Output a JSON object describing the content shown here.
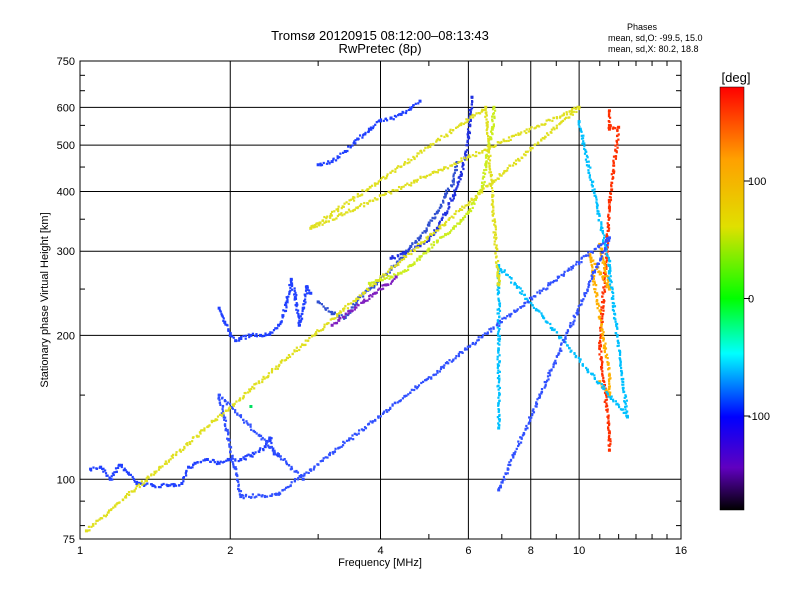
{
  "chart_data": {
    "type": "scatter",
    "title": "Tromsø 20120915 08:12:00–08:13:43",
    "subtitle": "RwPretec (8p)",
    "xlabel": "Frequency [MHz]",
    "ylabel": "Stationary phase Virtual Height [km]",
    "x_scale": "log",
    "y_scale": "log",
    "xlim": [
      1,
      16
    ],
    "ylim": [
      75,
      750
    ],
    "x_ticks": [
      1,
      2,
      4,
      6,
      8,
      10,
      16
    ],
    "y_ticks": [
      75,
      100,
      200,
      300,
      400,
      500,
      600,
      750
    ],
    "grid": true,
    "stats": {
      "heading": "Phases",
      "line_o": "mean, sd,O: -99.5, 15.0",
      "line_x": "mean, sd,X:  80.2, 18.8"
    },
    "colorbar": {
      "label": "[deg]",
      "range": [
        -180,
        180
      ],
      "ticks": [
        100,
        0,
        -100
      ],
      "colors": [
        "#ff0000",
        "#ffa000",
        "#e0e000",
        "#00ff00",
        "#00ffff",
        "#0000ff",
        "#6000c0",
        "#000000"
      ]
    },
    "series": [
      {
        "color": "#2040ff",
        "points": [
          [
            1.05,
            105
          ],
          [
            1.1,
            106
          ],
          [
            1.15,
            100
          ],
          [
            1.2,
            107
          ],
          [
            1.25,
            103
          ],
          [
            1.3,
            98
          ],
          [
            1.4,
            97
          ],
          [
            1.5,
            97
          ],
          [
            1.6,
            98
          ],
          [
            1.65,
            106
          ],
          [
            1.7,
            108
          ],
          [
            1.8,
            110
          ],
          [
            1.9,
            108
          ],
          [
            2.0,
            110
          ],
          [
            2.1,
            110
          ],
          [
            2.2,
            112
          ],
          [
            2.35,
            117
          ],
          [
            2.4,
            122
          ],
          [
            2.45,
            113
          ],
          [
            2.5,
            112
          ]
        ]
      },
      {
        "color": "#2040ff",
        "points": [
          [
            1.9,
            228
          ],
          [
            1.95,
            213
          ],
          [
            2.0,
            200
          ],
          [
            2.05,
            195
          ],
          [
            2.1,
            197
          ],
          [
            2.2,
            200
          ],
          [
            2.3,
            200
          ],
          [
            2.4,
            201
          ],
          [
            2.5,
            210
          ],
          [
            2.55,
            220
          ],
          [
            2.6,
            235
          ],
          [
            2.65,
            262
          ],
          [
            2.7,
            240
          ],
          [
            2.75,
            210
          ],
          [
            2.8,
            228
          ],
          [
            2.85,
            253
          ],
          [
            2.9,
            245
          ]
        ]
      },
      {
        "color": "#3050d0",
        "points": [
          [
            3.0,
            235
          ],
          [
            3.2,
            222
          ],
          [
            3.4,
            218
          ],
          [
            3.6,
            238
          ],
          [
            3.8,
            250
          ],
          [
            4.0,
            262
          ],
          [
            4.2,
            275
          ],
          [
            4.4,
            290
          ],
          [
            4.6,
            307
          ],
          [
            4.8,
            320
          ],
          [
            5.0,
            340
          ],
          [
            5.2,
            362
          ],
          [
            5.4,
            395
          ],
          [
            5.6,
            420
          ],
          [
            5.7,
            460
          ]
        ]
      },
      {
        "color": "#2030e0",
        "points": [
          [
            4.2,
            290
          ],
          [
            4.5,
            298
          ],
          [
            4.8,
            308
          ],
          [
            5.0,
            318
          ],
          [
            5.2,
            335
          ],
          [
            5.4,
            360
          ],
          [
            5.6,
            392
          ],
          [
            5.8,
            432
          ],
          [
            5.9,
            470
          ],
          [
            6.0,
            520
          ],
          [
            6.05,
            580
          ],
          [
            6.1,
            630
          ]
        ]
      },
      {
        "color": "#2040ff",
        "points": [
          [
            3.0,
            455
          ],
          [
            3.2,
            462
          ],
          [
            3.4,
            485
          ],
          [
            3.6,
            515
          ],
          [
            3.8,
            540
          ],
          [
            4.0,
            562
          ],
          [
            4.2,
            570
          ],
          [
            4.4,
            580
          ],
          [
            4.6,
            598
          ],
          [
            4.8,
            618
          ]
        ]
      },
      {
        "color": "#ccee20",
        "points": [
          [
            3.8,
            257
          ],
          [
            4.0,
            262
          ],
          [
            4.2,
            265
          ],
          [
            4.4,
            270
          ],
          [
            4.6,
            280
          ],
          [
            4.8,
            292
          ],
          [
            5.0,
            303
          ],
          [
            5.2,
            315
          ],
          [
            5.4,
            325
          ],
          [
            5.6,
            335
          ],
          [
            5.8,
            348
          ],
          [
            6.0,
            362
          ],
          [
            6.2,
            385
          ],
          [
            6.4,
            410
          ],
          [
            6.5,
            455
          ],
          [
            6.6,
            500
          ],
          [
            6.7,
            540
          ],
          [
            6.75,
            600
          ]
        ]
      },
      {
        "color": "#8020c0",
        "points": [
          [
            3.2,
            210
          ],
          [
            3.3,
            215
          ],
          [
            3.5,
            225
          ],
          [
            3.7,
            235
          ],
          [
            3.9,
            245
          ],
          [
            4.1,
            255
          ],
          [
            4.3,
            265
          ]
        ]
      },
      {
        "color": "#ff3000",
        "points": [
          [
            11.5,
            590
          ],
          [
            11.5,
            550
          ],
          [
            11.5,
            540
          ],
          [
            12.0,
            545
          ],
          [
            11.5,
            380
          ],
          [
            11.5,
            370
          ],
          [
            11.0,
            190
          ],
          [
            11.5,
            125
          ],
          [
            11.5,
            115
          ]
        ]
      },
      {
        "color": "#ffb000",
        "points": [
          [
            11.0,
            160
          ],
          [
            11.5,
            150
          ],
          [
            11.5,
            165
          ],
          [
            10.5,
            295
          ],
          [
            11.5,
            250
          ],
          [
            11.0,
            310
          ]
        ]
      },
      {
        "color": "#00c0ff",
        "points": [
          [
            10.0,
            560
          ],
          [
            11.5,
            280
          ],
          [
            11.5,
            270
          ],
          [
            12.5,
            135
          ],
          [
            6.9,
            280
          ],
          [
            6.9,
            128
          ]
        ]
      },
      {
        "color": "#3050ff",
        "points": [
          [
            6.9,
            95
          ],
          [
            11.5,
            320
          ],
          [
            2.5,
            93
          ],
          [
            2.1,
            92
          ],
          [
            1.9,
            150
          ],
          [
            2.8,
            100
          ]
        ]
      },
      {
        "color": "#e0e020",
        "points": [
          [
            6.9,
            265
          ],
          [
            6.9,
            255
          ],
          [
            6.5,
            600
          ],
          [
            2.9,
            335
          ],
          [
            10.0,
            600
          ],
          [
            1.03,
            78
          ]
        ]
      },
      {
        "color": "#00e060",
        "points": [
          [
            2.2,
            142
          ]
        ]
      }
    ]
  }
}
